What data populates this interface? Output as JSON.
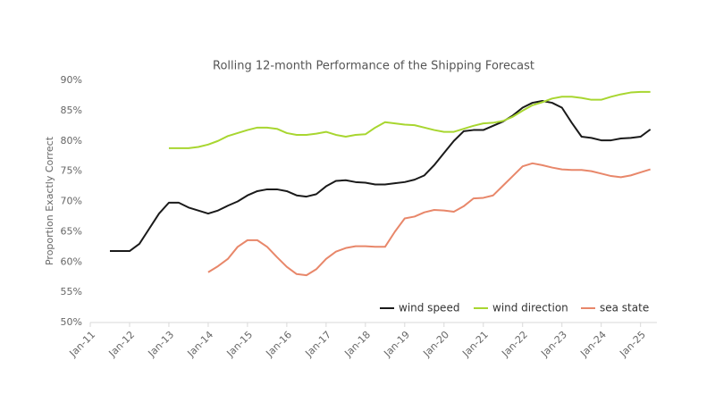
{
  "chart_data": {
    "type": "line",
    "title": "Rolling 12-month Performance of the Shipping Forecast",
    "y_label": "Proportion Exactly Correct",
    "x": [
      "2011-07",
      "2011-10",
      "2012-01",
      "2012-04",
      "2012-07",
      "2012-10",
      "2013-01",
      "2013-04",
      "2013-07",
      "2013-10",
      "2014-01",
      "2014-04",
      "2014-07",
      "2014-10",
      "2015-01",
      "2015-04",
      "2015-07",
      "2015-10",
      "2016-01",
      "2016-04",
      "2016-07",
      "2016-10",
      "2017-01",
      "2017-04",
      "2017-07",
      "2017-10",
      "2018-01",
      "2018-04",
      "2018-07",
      "2018-10",
      "2019-01",
      "2019-04",
      "2019-07",
      "2019-10",
      "2020-01",
      "2020-04",
      "2020-07",
      "2020-10",
      "2021-01",
      "2021-04",
      "2021-07",
      "2021-10",
      "2022-01",
      "2022-04",
      "2022-07",
      "2022-10",
      "2023-01",
      "2023-04",
      "2023-07",
      "2023-10",
      "2024-01",
      "2024-04",
      "2024-07",
      "2024-10",
      "2025-01",
      "2025-04"
    ],
    "series": [
      {
        "name": "wind speed",
        "color": "#1a1a1a",
        "values": [
          61.8,
          61.8,
          61.8,
          63,
          65.5,
          68,
          69.8,
          69.8,
          69,
          68.5,
          68,
          68.5,
          69.3,
          70,
          71,
          71.7,
          72,
          72,
          71.7,
          71,
          70.8,
          71.2,
          72.5,
          73.4,
          73.5,
          73.2,
          73.1,
          72.8,
          72.8,
          73,
          73.2,
          73.6,
          74.3,
          76,
          78,
          80,
          81.6,
          81.8,
          81.8,
          82.5,
          83.2,
          84.2,
          85.5,
          86.3,
          86.6,
          86.3,
          85.5,
          83,
          80.7,
          80.5,
          80.1,
          80.1,
          80.4,
          80.5,
          80.7,
          81.9
        ]
      },
      {
        "name": "wind direction",
        "color": "#a8d630",
        "values": [
          null,
          null,
          null,
          null,
          null,
          null,
          78.8,
          78.8,
          78.8,
          79,
          79.4,
          80,
          80.8,
          81.3,
          81.8,
          82.2,
          82.2,
          82,
          81.3,
          81,
          81,
          81.2,
          81.5,
          81,
          80.7,
          81,
          81.1,
          82.2,
          83.1,
          82.9,
          82.7,
          82.6,
          82.2,
          81.8,
          81.5,
          81.5,
          82,
          82.5,
          82.9,
          83,
          83.3,
          84,
          85,
          85.9,
          86.4,
          87,
          87.3,
          87.3,
          87.1,
          86.8,
          86.8,
          87.3,
          87.7,
          88,
          88.1,
          88.1
        ]
      },
      {
        "name": "sea state",
        "color": "#e8876a",
        "values": [
          null,
          null,
          null,
          null,
          null,
          null,
          null,
          null,
          null,
          null,
          58.3,
          59.3,
          60.5,
          62.5,
          63.6,
          63.6,
          62.5,
          60.8,
          59.2,
          58,
          57.8,
          58.8,
          60.5,
          61.7,
          62.3,
          62.6,
          62.6,
          62.5,
          62.5,
          65,
          67.2,
          67.5,
          68.2,
          68.6,
          68.5,
          68.3,
          69.2,
          70.5,
          70.6,
          71,
          72.6,
          74.2,
          75.8,
          76.3,
          76,
          75.6,
          75.3,
          75.2,
          75.2,
          75,
          74.6,
          74.2,
          74,
          74.3,
          74.8,
          75.3
        ]
      }
    ],
    "xlim": [
      "2011-01",
      "2025-06"
    ],
    "xticks": [
      {
        "value": "2011-01",
        "label": "Jan-11"
      },
      {
        "value": "2012-01",
        "label": "Jan-12"
      },
      {
        "value": "2013-01",
        "label": "Jan-13"
      },
      {
        "value": "2014-01",
        "label": "Jan-14"
      },
      {
        "value": "2015-01",
        "label": "Jan-15"
      },
      {
        "value": "2016-01",
        "label": "Jan-16"
      },
      {
        "value": "2017-01",
        "label": "Jan-17"
      },
      {
        "value": "2018-01",
        "label": "Jan-18"
      },
      {
        "value": "2019-01",
        "label": "Jan-19"
      },
      {
        "value": "2020-01",
        "label": "Jan-20"
      },
      {
        "value": "2021-01",
        "label": "Jan-21"
      },
      {
        "value": "2022-01",
        "label": "Jan-22"
      },
      {
        "value": "2023-01",
        "label": "Jan-23"
      },
      {
        "value": "2024-01",
        "label": "Jan-24"
      },
      {
        "value": "2025-01",
        "label": "Jan-25"
      }
    ],
    "ylim": [
      50,
      90
    ],
    "yticks": [
      {
        "value": 50,
        "label": "50%"
      },
      {
        "value": 55,
        "label": "55%"
      },
      {
        "value": 60,
        "label": "60%"
      },
      {
        "value": 65,
        "label": "65%"
      },
      {
        "value": 70,
        "label": "70%"
      },
      {
        "value": 75,
        "label": "75%"
      },
      {
        "value": 80,
        "label": "80%"
      },
      {
        "value": 85,
        "label": "85%"
      },
      {
        "value": 90,
        "label": "90%"
      }
    ],
    "legend": "lower-right"
  }
}
